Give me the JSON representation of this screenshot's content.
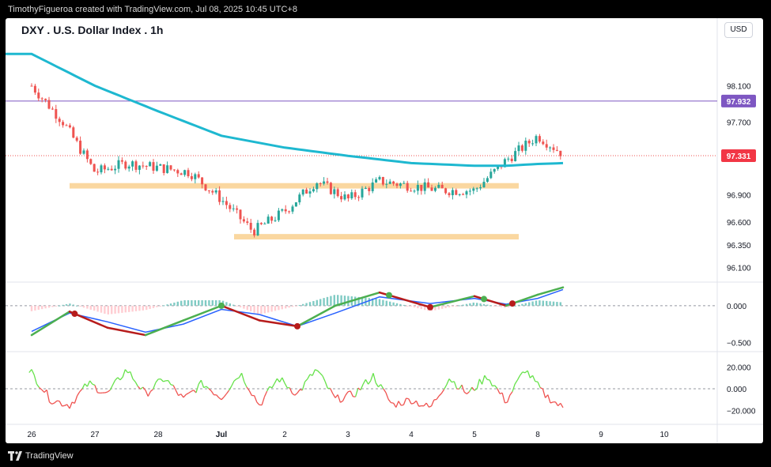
{
  "attribution": "TimothyFigueroa created with TradingView.com, Jul 08, 2025 10:45 UTC+8",
  "footer_brand": "TradingView",
  "chart_title": "DXY . U.S. Dollar Index . 1h",
  "currency": "USD",
  "colors": {
    "up": "#26a69a",
    "down": "#ef5350",
    "ma": "#1eb8d0",
    "zone": "#fad7a0",
    "purple_line": "#7e57c2",
    "price_badge": "#f23645",
    "macd_green": "#4caf50",
    "macd_red": "#b71c1c",
    "macd_blue": "#2962ff",
    "rsi_up": "#66e24a",
    "rsi_down": "#ef5350"
  },
  "chart_data": [
    {
      "type": "line",
      "title": "DXY . U.S. Dollar Index . 1h",
      "x": [
        "26",
        "27",
        "28",
        "Jul",
        "2",
        "3",
        "4",
        "5",
        "8",
        "9",
        "10"
      ],
      "ylim": [
        95.95,
        98.6
      ],
      "y_ticks": [
        "98.100",
        "97.700",
        "96.900",
        "96.600",
        "96.350",
        "96.100"
      ],
      "series": [
        {
          "name": "",
          "x": [
            0,
            0.5,
            1,
            1.5,
            2,
            2.5,
            3,
            3.5,
            4,
            4.5,
            5,
            5.5,
            6,
            6.5,
            7,
            7.5,
            8,
            8.4
          ],
          "values": [
            98.1,
            97.7,
            97.15,
            97.25,
            97.2,
            97.15,
            96.85,
            96.5,
            96.72,
            97.05,
            96.85,
            97.05,
            97.0,
            96.95,
            96.95,
            97.28,
            97.55,
            97.35
          ]
        },
        {
          "name": "",
          "x": [
            0,
            1,
            2,
            3,
            4,
            5,
            6,
            7,
            7.5,
            8,
            8.4
          ],
          "values": [
            98.45,
            98.1,
            97.82,
            97.55,
            97.42,
            97.33,
            97.25,
            97.22,
            97.22,
            97.24,
            97.25
          ]
        }
      ],
      "horizontal_levels": [
        97.932,
        97.331
      ],
      "highlight_zones": [
        {
          "from_x": 0.6,
          "to_x": 7.7,
          "low": 96.97,
          "high": 97.03
        },
        {
          "from_x": 3.2,
          "to_x": 7.7,
          "low": 96.41,
          "high": 96.47
        }
      ],
      "price_labels": [
        "97.932",
        "97.331"
      ]
    },
    {
      "type": "line",
      "y_ticks": [
        "0.000",
        "−0.500"
      ],
      "ylim": [
        -0.55,
        0.3
      ],
      "series": [
        {
          "name": "",
          "x": [
            0,
            0.6,
            1.2,
            1.8,
            2.4,
            3,
            3.6,
            4.2,
            4.8,
            5.5,
            6.3,
            7,
            7.5,
            8,
            8.4
          ],
          "values": [
            -0.4,
            -0.08,
            -0.3,
            -0.4,
            -0.2,
            0.0,
            -0.2,
            -0.28,
            0.0,
            0.18,
            -0.02,
            0.13,
            0.0,
            0.15,
            0.25
          ]
        },
        {
          "name": "",
          "x": [
            0,
            0.6,
            1.2,
            1.8,
            2.4,
            3,
            3.6,
            4.2,
            4.8,
            5.5,
            6.3,
            7,
            7.5,
            8,
            8.4
          ],
          "values": [
            -0.35,
            -0.1,
            -0.22,
            -0.36,
            -0.25,
            -0.05,
            -0.12,
            -0.28,
            -0.1,
            0.12,
            0.03,
            0.1,
            0.02,
            0.1,
            0.22
          ]
        }
      ],
      "cross_markers": [
        0.68,
        3.0,
        4.2,
        5.65,
        6.3,
        7.15,
        7.6
      ]
    },
    {
      "type": "line",
      "y_ticks": [
        "20.000",
        "0.000",
        "−20.000"
      ],
      "ylim": [
        -30,
        30
      ],
      "series": [
        {
          "name": "",
          "x": [
            0,
            0.3,
            0.6,
            0.9,
            1.2,
            1.5,
            1.8,
            2.1,
            2.4,
            2.7,
            3,
            3.3,
            3.6,
            3.9,
            4.2,
            4.5,
            4.8,
            5.1,
            5.4,
            5.7,
            6,
            6.3,
            6.6,
            6.9,
            7.2,
            7.5,
            7.8,
            8.1,
            8.4
          ],
          "values": [
            15,
            -10,
            -15,
            5,
            -5,
            18,
            -5,
            10,
            -10,
            5,
            -8,
            15,
            -15,
            10,
            -5,
            18,
            -10,
            -5,
            12,
            -15,
            -10,
            -18,
            10,
            -5,
            12,
            -12,
            18,
            -5,
            -18
          ]
        }
      ]
    }
  ]
}
